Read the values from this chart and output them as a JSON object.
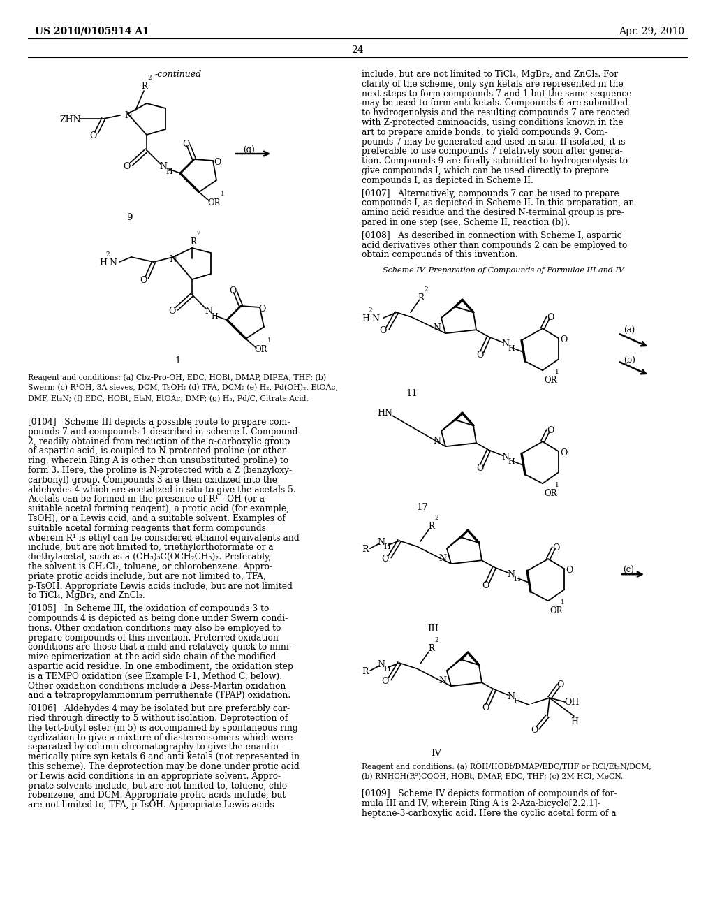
{
  "page_number": "24",
  "patent_number": "US 2010/0105914 A1",
  "patent_date": "Apr. 29, 2010",
  "background_color": "#ffffff",
  "continued_label": "-continued",
  "compound9_label": "9",
  "compound1_label": "1",
  "compound11_label": "11",
  "compound17_label": "17",
  "compoundIII_label": "III",
  "compoundIV_label": "IV",
  "scheme_iv_title": "Scheme IV. Preparation of Compounds of Formulae III and IV",
  "left_reagent_line1": "Reagent and conditions: (a) Cbz-Pro-OH, EDC, HOBt, DMAP, DIPEA, THF; (b)",
  "left_reagent_line2": "Swern; (c) R¹OH, 3A sieves, DCM, TsOH; (d) TFA, DCM; (e) H₂, Pd(OH)₂, EtOAc,",
  "left_reagent_line3": "DMF, Et₃N; (f) EDC, HOBt, Et₃N, EtOAc, DMF; (g) H₂, Pd/C, Citrate Acid.",
  "right_reagent_line1": "Reagent and conditions: (a) ROH/HOBt/DMAP/EDC/THF or RCl/Et₃N/DCM;",
  "right_reagent_line2": "(b) RNHCH(R²)COOH, HOBt, DMAP, EDC, THF; (c) 2M HCl, MeCN.",
  "para0104_lines": [
    "[0104]   Scheme III depicts a possible route to prepare com-",
    "pounds 7 and compounds 1 described in scheme I. Compound",
    "2, readily obtained from reduction of the α-carboxylic group",
    "of aspartic acid, is coupled to N-protected proline (or other",
    "ring, wherein Ring A is other than unsubstituted proline) to",
    "form 3. Here, the proline is N-protected with a Z (benzyloxy-",
    "carbonyl) group. Compounds 3 are then oxidized into the",
    "aldehydes 4 which are acetalized in situ to give the acetals 5.",
    "Acetals can be formed in the presence of R¹—OH (or a",
    "suitable acetal forming reagent), a protic acid (for example,",
    "TsOH), or a Lewis acid, and a suitable solvent. Examples of",
    "suitable acetal forming reagents that form compounds",
    "wherein R¹ is ethyl can be considered ethanol equivalents and",
    "include, but are not limited to, triethylorthoformate or a",
    "diethylacetal, such as a (CH₃)₃C(OCH₂CH₃)₂. Preferably,",
    "the solvent is CH₂Cl₂, toluene, or chlorobenzene. Appro-",
    "priate protic acids include, but are not limited to, TFA,",
    "p-TsOH. Appropriate Lewis acids include, but are not limited",
    "to TiCl₄, MgBr₂, and ZnCl₂."
  ],
  "para0105_lines": [
    "[0105]   In Scheme III, the oxidation of compounds 3 to",
    "compounds 4 is depicted as being done under Swern condi-",
    "tions. Other oxidation conditions may also be employed to",
    "prepare compounds of this invention. Preferred oxidation",
    "conditions are those that a mild and relatively quick to mini-",
    "mize epimerization at the acid side chain of the modified",
    "aspartic acid residue. In one embodiment, the oxidation step",
    "is a TEMPO oxidation (see Example I-1, Method C, below).",
    "Other oxidation conditions include a Dess-Martin oxidation",
    "and a tetrapropylammonium perruthenate (TPAP) oxidation."
  ],
  "para0106_lines": [
    "[0106]   Aldehydes 4 may be isolated but are preferably car-",
    "ried through directly to 5 without isolation. Deprotection of",
    "the tert-butyl ester (in 5) is accompanied by spontaneous ring",
    "cyclization to give a mixture of diastereoisomers which were",
    "separated by column chromatography to give the enantio-",
    "merically pure syn ketals 6 and anti ketals (not represented in",
    "this scheme). The deprotection may be done under protic acid",
    "or Lewis acid conditions in an appropriate solvent. Appro-",
    "priate solvents include, but are not limited to, toluene, chlo-",
    "robenzene, and DCM. Appropriate protic acids include, but",
    "are not limited to, TFA, p-TsOH. Appropriate Lewis acids"
  ],
  "right_para1_lines": [
    "include, but are not limited to TiCl₄, MgBr₂, and ZnCl₂. For",
    "clarity of the scheme, only syn ketals are represented in the",
    "next steps to form compounds 7 and 1 but the same sequence",
    "may be used to form anti ketals. Compounds 6 are submitted",
    "to hydrogenolysis and the resulting compounds 7 are reacted",
    "with Z-protected aminoacids, using conditions known in the",
    "art to prepare amide bonds, to yield compounds 9. Com-",
    "pounds 7 may be generated and used in situ. If isolated, it is",
    "preferable to use compounds 7 relatively soon after genera-",
    "tion. Compounds 9 are finally submitted to hydrogenolysis to",
    "give compounds I, which can be used directly to prepare",
    "compounds I, as depicted in Scheme II."
  ],
  "para0107_lines": [
    "[0107]   Alternatively, compounds 7 can be used to prepare",
    "compounds I, as depicted in Scheme II. In this preparation, an",
    "amino acid residue and the desired N-terminal group is pre-",
    "pared in one step (see, Scheme II, reaction (b))."
  ],
  "para0108_lines": [
    "[0108]   As described in connection with Scheme I, aspartic",
    "acid derivatives other than compounds 2 can be employed to",
    "obtain compounds of this invention."
  ],
  "para0109_lines": [
    "[0109]   Scheme IV depicts formation of compounds of for-",
    "mula III and IV, wherein Ring A is 2-Aza-bicyclo[2.2.1]-",
    "heptane-3-carboxylic acid. Here the cyclic acetal form of a"
  ]
}
